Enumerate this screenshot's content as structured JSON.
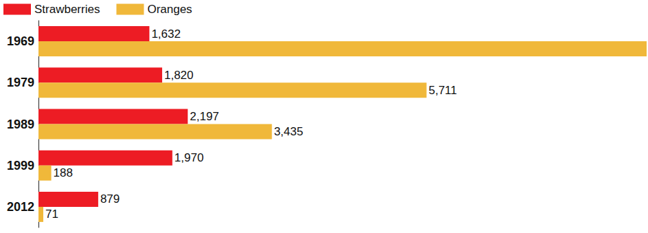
{
  "chart_data": {
    "type": "bar",
    "orientation": "horizontal",
    "categories": [
      "1969",
      "1979",
      "1989",
      "1999",
      "2012"
    ],
    "series": [
      {
        "name": "Strawberries",
        "color": "#ed1c24",
        "values": [
          1632,
          1820,
          2197,
          1970,
          879
        ],
        "value_labels": [
          "1,632",
          "1,820",
          "2,197",
          "1,970",
          "879"
        ]
      },
      {
        "name": "Oranges",
        "color": "#f0b83a",
        "values": [
          8950,
          5711,
          3435,
          188,
          71
        ],
        "value_labels": [
          null,
          "5,711",
          "3,435",
          "188",
          "71"
        ]
      }
    ],
    "xlim": [
      0,
      8950
    ],
    "data_labels": true,
    "tick_labels": "y",
    "legend": "top-left",
    "grid": false
  }
}
